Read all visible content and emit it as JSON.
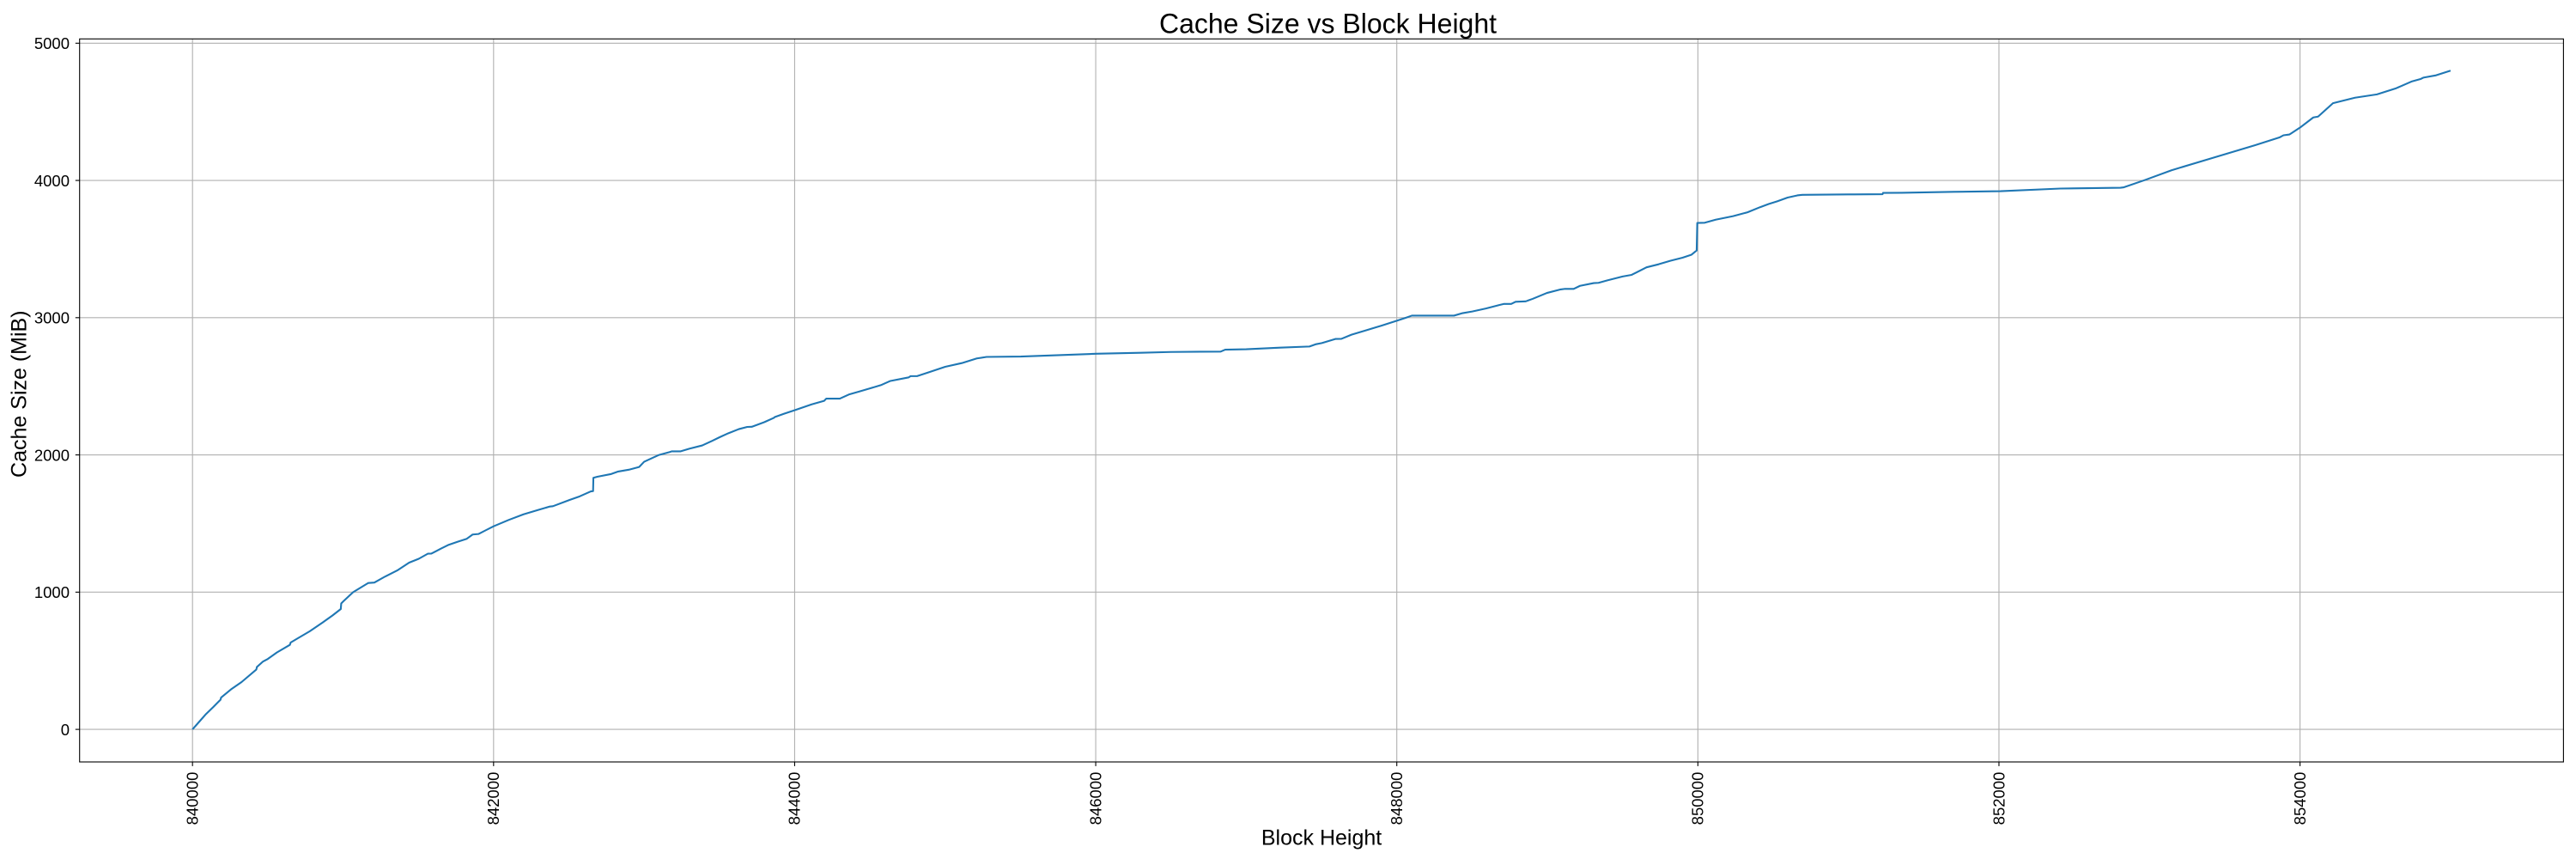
{
  "chart_data": {
    "type": "line",
    "title": "Cache Size vs Block Height",
    "xlabel": "Block Height",
    "ylabel": "Cache Size (MiB)",
    "x_ticks": [
      840000,
      842000,
      844000,
      846000,
      848000,
      850000,
      852000,
      854000
    ],
    "y_ticks": [
      0,
      1000,
      2000,
      3000,
      4000,
      5000
    ],
    "x_tick_labels": [
      "840000",
      "842000",
      "844000",
      "846000",
      "848000",
      "850000",
      "852000",
      "854000"
    ],
    "y_tick_labels": [
      "0",
      "1000",
      "2000",
      "3000",
      "4000",
      "5000"
    ],
    "xlim": [
      839250,
      855750
    ],
    "ylim": [
      -237.2,
      5031.3
    ],
    "x_tick_rotation": 90,
    "grid": true,
    "legend": false,
    "line_color": "#1f77b4",
    "grid_color": "#b0b0b0",
    "series": [
      {
        "name": "cache_size",
        "points": [
          [
            840000,
            0
          ],
          [
            840040,
            50
          ],
          [
            840090,
            112
          ],
          [
            840140,
            165
          ],
          [
            840186,
            216
          ],
          [
            840190,
            232
          ],
          [
            840260,
            295
          ],
          [
            840326,
            345
          ],
          [
            840424,
            436
          ],
          [
            840428,
            455
          ],
          [
            840469,
            495
          ],
          [
            840500,
            513
          ],
          [
            840560,
            560
          ],
          [
            840647,
            616
          ],
          [
            840652,
            633
          ],
          [
            840700,
            664
          ],
          [
            840779,
            715
          ],
          [
            840866,
            780
          ],
          [
            840930,
            830
          ],
          [
            840985,
            877
          ],
          [
            840988,
            918
          ],
          [
            841002,
            933
          ],
          [
            841067,
            1000
          ],
          [
            841168,
            1067
          ],
          [
            841208,
            1070
          ],
          [
            841280,
            1114
          ],
          [
            841360,
            1158
          ],
          [
            841439,
            1215
          ],
          [
            841503,
            1243
          ],
          [
            841563,
            1280
          ],
          [
            841587,
            1281
          ],
          [
            841650,
            1317
          ],
          [
            841702,
            1345
          ],
          [
            841760,
            1367
          ],
          [
            841822,
            1389
          ],
          [
            841861,
            1420
          ],
          [
            841901,
            1424
          ],
          [
            841950,
            1452
          ],
          [
            842000,
            1480
          ],
          [
            842100,
            1526
          ],
          [
            842199,
            1567
          ],
          [
            842299,
            1600
          ],
          [
            842374,
            1624
          ],
          [
            842394,
            1626
          ],
          [
            842505,
            1672
          ],
          [
            842572,
            1698
          ],
          [
            842646,
            1734
          ],
          [
            842661,
            1736
          ],
          [
            842663,
            1833
          ],
          [
            842689,
            1841
          ],
          [
            842782,
            1861
          ],
          [
            842828,
            1879
          ],
          [
            842898,
            1892
          ],
          [
            842967,
            1912
          ],
          [
            843000,
            1950
          ],
          [
            843099,
            2000
          ],
          [
            843170,
            2021
          ],
          [
            843183,
            2026
          ],
          [
            843243,
            2026
          ],
          [
            843300,
            2045
          ],
          [
            843386,
            2069
          ],
          [
            843451,
            2102
          ],
          [
            843500,
            2128
          ],
          [
            843560,
            2158
          ],
          [
            843629,
            2188
          ],
          [
            843685,
            2204
          ],
          [
            843715,
            2205
          ],
          [
            843801,
            2240
          ],
          [
            843862,
            2270
          ],
          [
            843868,
            2276
          ],
          [
            843930,
            2300
          ],
          [
            844001,
            2326
          ],
          [
            844113,
            2368
          ],
          [
            844196,
            2394
          ],
          [
            844210,
            2410
          ],
          [
            844300,
            2410
          ],
          [
            844360,
            2440
          ],
          [
            844430,
            2462
          ],
          [
            844498,
            2484
          ],
          [
            844572,
            2508
          ],
          [
            844636,
            2539
          ],
          [
            844758,
            2565
          ],
          [
            844770,
            2574
          ],
          [
            844813,
            2574
          ],
          [
            844887,
            2601
          ],
          [
            845000,
            2642
          ],
          [
            845110,
            2669
          ],
          [
            845210,
            2703
          ],
          [
            845275,
            2714
          ],
          [
            845502,
            2717
          ],
          [
            845757,
            2727
          ],
          [
            846000,
            2737
          ],
          [
            846296,
            2744
          ],
          [
            846498,
            2750
          ],
          [
            846830,
            2753
          ],
          [
            846860,
            2767
          ],
          [
            847000,
            2770
          ],
          [
            847226,
            2782
          ],
          [
            847420,
            2790
          ],
          [
            847464,
            2807
          ],
          [
            847502,
            2815
          ],
          [
            847592,
            2845
          ],
          [
            847632,
            2846
          ],
          [
            847699,
            2876
          ],
          [
            847799,
            2909
          ],
          [
            847898,
            2942
          ],
          [
            848000,
            2978
          ],
          [
            848061,
            3000
          ],
          [
            848100,
            3015
          ],
          [
            848380,
            3015
          ],
          [
            848437,
            3033
          ],
          [
            848501,
            3045
          ],
          [
            848592,
            3067
          ],
          [
            848683,
            3093
          ],
          [
            848710,
            3100
          ],
          [
            848760,
            3100
          ],
          [
            848789,
            3116
          ],
          [
            848857,
            3119
          ],
          [
            848902,
            3137
          ],
          [
            848997,
            3180
          ],
          [
            849089,
            3206
          ],
          [
            849118,
            3210
          ],
          [
            849175,
            3210
          ],
          [
            849217,
            3232
          ],
          [
            849308,
            3252
          ],
          [
            849340,
            3254
          ],
          [
            849399,
            3272
          ],
          [
            849500,
            3300
          ],
          [
            849560,
            3312
          ],
          [
            849659,
            3367
          ],
          [
            849739,
            3389
          ],
          [
            849819,
            3415
          ],
          [
            849898,
            3437
          ],
          [
            849958,
            3459
          ],
          [
            849992,
            3490
          ],
          [
            849996,
            3690
          ],
          [
            850046,
            3692
          ],
          [
            850118,
            3714
          ],
          [
            850234,
            3740
          ],
          [
            850330,
            3768
          ],
          [
            850413,
            3805
          ],
          [
            850470,
            3828
          ],
          [
            850527,
            3848
          ],
          [
            850596,
            3875
          ],
          [
            850661,
            3891
          ],
          [
            850694,
            3895
          ],
          [
            851000,
            3898
          ],
          [
            851227,
            3900
          ],
          [
            851230,
            3909
          ],
          [
            851352,
            3910
          ],
          [
            851700,
            3917
          ],
          [
            852010,
            3922
          ],
          [
            852408,
            3941
          ],
          [
            852807,
            3947
          ],
          [
            852830,
            3950
          ],
          [
            852962,
            4000
          ],
          [
            853146,
            4074
          ],
          [
            853400,
            4158
          ],
          [
            853700,
            4256
          ],
          [
            853863,
            4313
          ],
          [
            853890,
            4329
          ],
          [
            853930,
            4335
          ],
          [
            854000,
            4385
          ],
          [
            854088,
            4459
          ],
          [
            854120,
            4465
          ],
          [
            854219,
            4563
          ],
          [
            854365,
            4603
          ],
          [
            854511,
            4627
          ],
          [
            854639,
            4672
          ],
          [
            854744,
            4722
          ],
          [
            854803,
            4740
          ],
          [
            854819,
            4749
          ],
          [
            854904,
            4766
          ],
          [
            855000,
            4800
          ]
        ]
      }
    ]
  }
}
